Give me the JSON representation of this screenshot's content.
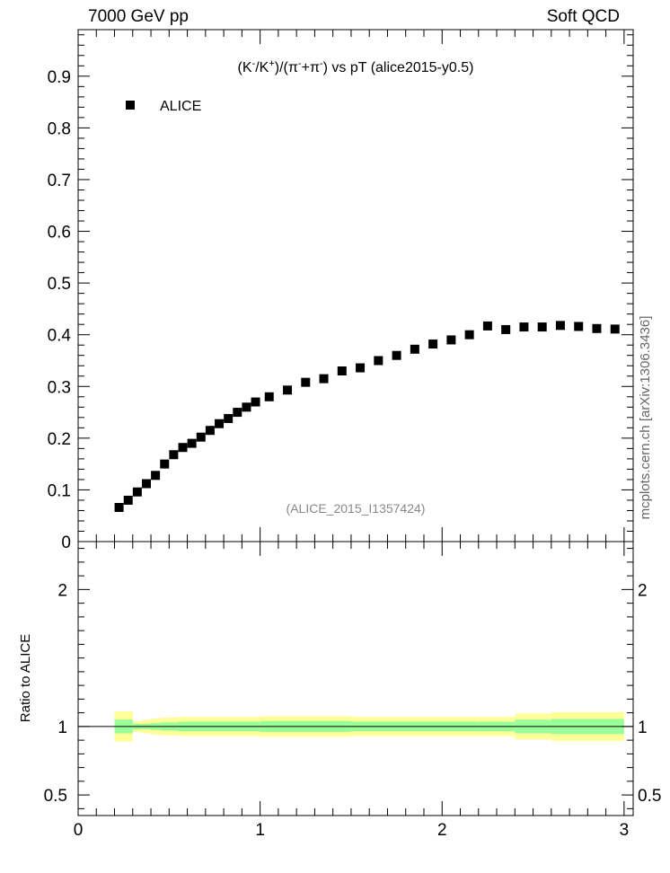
{
  "header": {
    "left": "7000 GeV pp",
    "right": "Soft QCD"
  },
  "side_label": "mcplots.cern.ch [arXiv:1306.3436]",
  "annotation": "(ALICE_2015_I1357424)",
  "colors": {
    "data": "#000000",
    "band_outer": "#ffff99",
    "band_inner": "#99ff99",
    "reference_line": "#000000",
    "annotation": "#888888",
    "side_label": "#666666"
  },
  "chart_data": [
    {
      "type": "scatter",
      "title_parts": [
        "(K",
        "-",
        "/K",
        "+",
        ")/(π",
        "-",
        "+π",
        "-",
        ") vs pT (alice2015-y0.5)"
      ],
      "xlim": [
        0,
        3.05
      ],
      "ylim": [
        0,
        0.99
      ],
      "yticks": [
        0.1,
        0.2,
        0.3,
        0.4,
        0.5,
        0.6,
        0.7,
        0.8,
        0.9
      ],
      "ytick_labels": [
        "0.1",
        "0.2",
        "0.3",
        "0.4",
        "0.5",
        "0.6",
        "0.7",
        "0.8",
        "0.9"
      ],
      "bottom_tick_label": "0",
      "legend": {
        "entry": "ALICE",
        "placement": "top-left"
      },
      "series": [
        {
          "name": "ALICE",
          "x": [
            0.225,
            0.275,
            0.325,
            0.375,
            0.425,
            0.475,
            0.525,
            0.575,
            0.625,
            0.675,
            0.725,
            0.775,
            0.825,
            0.875,
            0.925,
            0.975,
            1.05,
            1.15,
            1.25,
            1.35,
            1.45,
            1.55,
            1.65,
            1.75,
            1.85,
            1.95,
            2.05,
            2.15,
            2.25,
            2.35,
            2.45,
            2.55,
            2.65,
            2.75,
            2.85,
            2.95
          ],
          "y": [
            0.066,
            0.08,
            0.096,
            0.112,
            0.128,
            0.15,
            0.168,
            0.182,
            0.19,
            0.202,
            0.215,
            0.228,
            0.238,
            0.25,
            0.26,
            0.27,
            0.28,
            0.293,
            0.308,
            0.315,
            0.33,
            0.336,
            0.35,
            0.36,
            0.372,
            0.382,
            0.39,
            0.4,
            0.417,
            0.41,
            0.415,
            0.415,
            0.418,
            0.416,
            0.412,
            0.411
          ]
        }
      ]
    },
    {
      "type": "area",
      "ylabel": "Ratio to ALICE",
      "xlim": [
        0,
        3.05
      ],
      "ylim": [
        0.35,
        2.35
      ],
      "yticks": [
        0.5,
        1,
        2
      ],
      "ytick_labels": [
        "0.5",
        "1",
        "2"
      ],
      "xticks": [
        0,
        1,
        2,
        3
      ],
      "xtick_labels": [
        "0",
        "1",
        "2",
        "3"
      ],
      "reference": 1,
      "bins": [
        {
          "x0": 0.2,
          "x1": 0.3,
          "out_lo": 0.89,
          "out_hi": 1.11,
          "in_lo": 0.95,
          "in_hi": 1.05
        },
        {
          "x0": 0.3,
          "x1": 0.35,
          "out_lo": 0.96,
          "out_hi": 1.04,
          "in_lo": 0.98,
          "in_hi": 1.02
        },
        {
          "x0": 0.35,
          "x1": 0.4,
          "out_lo": 0.95,
          "out_hi": 1.05,
          "in_lo": 0.98,
          "in_hi": 1.02
        },
        {
          "x0": 0.4,
          "x1": 0.45,
          "out_lo": 0.94,
          "out_hi": 1.06,
          "in_lo": 0.975,
          "in_hi": 1.025
        },
        {
          "x0": 0.45,
          "x1": 0.55,
          "out_lo": 0.935,
          "out_hi": 1.065,
          "in_lo": 0.97,
          "in_hi": 1.03
        },
        {
          "x0": 0.55,
          "x1": 1.0,
          "out_lo": 0.93,
          "out_hi": 1.07,
          "in_lo": 0.965,
          "in_hi": 1.035
        },
        {
          "x0": 1.0,
          "x1": 1.5,
          "out_lo": 0.925,
          "out_hi": 1.075,
          "in_lo": 0.96,
          "in_hi": 1.04
        },
        {
          "x0": 1.5,
          "x1": 2.2,
          "out_lo": 0.93,
          "out_hi": 1.07,
          "in_lo": 0.965,
          "in_hi": 1.035
        },
        {
          "x0": 2.2,
          "x1": 2.4,
          "out_lo": 0.93,
          "out_hi": 1.07,
          "in_lo": 0.965,
          "in_hi": 1.035
        },
        {
          "x0": 2.4,
          "x1": 2.6,
          "out_lo": 0.905,
          "out_hi": 1.095,
          "in_lo": 0.95,
          "in_hi": 1.05
        },
        {
          "x0": 2.6,
          "x1": 3.0,
          "out_lo": 0.895,
          "out_hi": 1.105,
          "in_lo": 0.945,
          "in_hi": 1.055
        }
      ]
    }
  ]
}
